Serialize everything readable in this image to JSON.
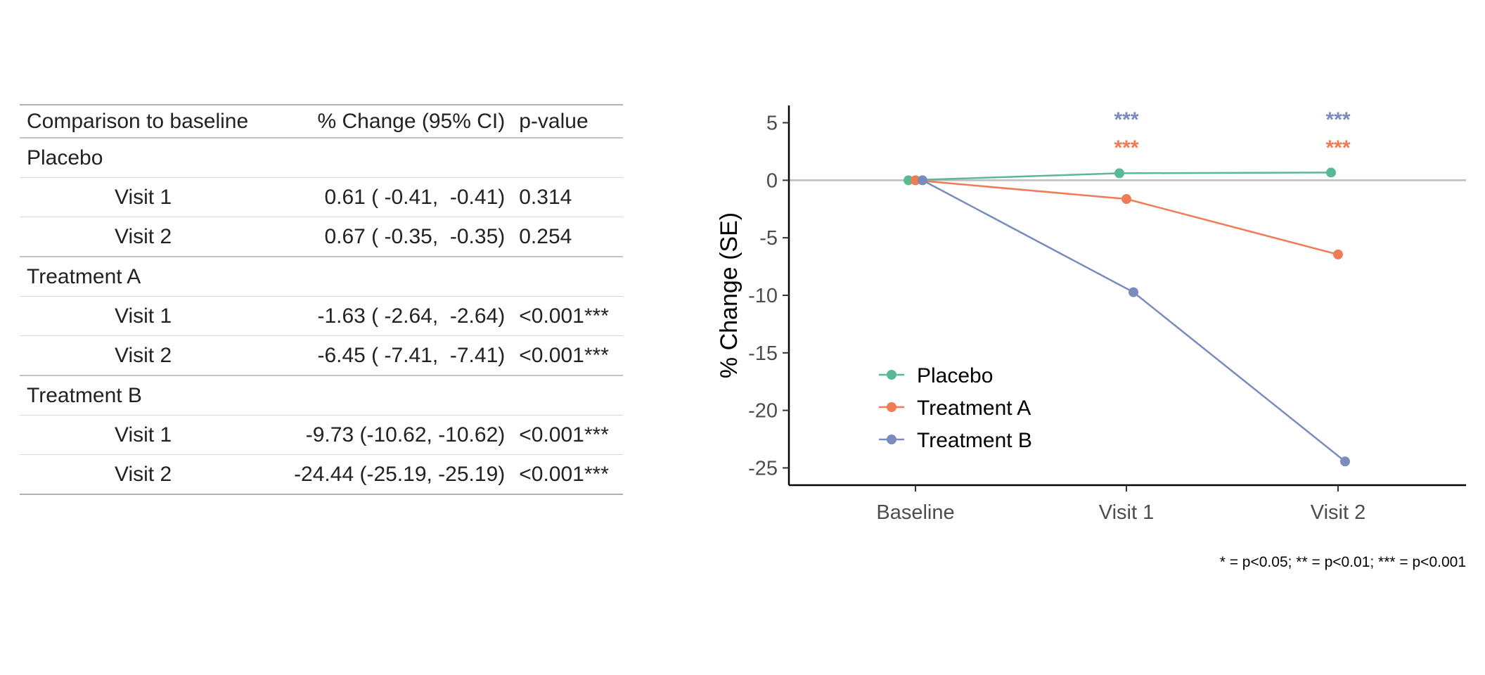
{
  "table": {
    "headers": {
      "label": "Comparison to baseline",
      "change": "% Change (95% CI)",
      "p": "p-value"
    },
    "groups": [
      {
        "name": "Placebo",
        "rows": [
          {
            "visit": "Visit 1",
            "change": "0.61 ( -0.41,  -0.41)",
            "p": "0.314"
          },
          {
            "visit": "Visit 2",
            "change": "0.67 ( -0.35,  -0.35)",
            "p": "0.254"
          }
        ]
      },
      {
        "name": "Treatment A",
        "rows": [
          {
            "visit": "Visit 1",
            "change": "-1.63 ( -2.64,  -2.64)",
            "p": "<0.001***"
          },
          {
            "visit": "Visit 2",
            "change": "-6.45 ( -7.41,  -7.41)",
            "p": "<0.001***"
          }
        ]
      },
      {
        "name": "Treatment B",
        "rows": [
          {
            "visit": "Visit 1",
            "change": "-9.73 (-10.62, -10.62)",
            "p": "<0.001***"
          },
          {
            "visit": "Visit 2",
            "change": "-24.44 (-25.19, -25.19)",
            "p": "<0.001***"
          }
        ]
      }
    ]
  },
  "chart_data": {
    "type": "line",
    "title": "",
    "xlabel": "",
    "ylabel": "% Change (SE)",
    "categories": [
      "Baseline",
      "Visit 1",
      "Visit 2"
    ],
    "ylim": [
      -26.5,
      6.5
    ],
    "yticks": [
      5,
      0,
      -5,
      -10,
      -15,
      -20,
      -25
    ],
    "reference_line": 0,
    "legend_position": "bottom-left",
    "series": [
      {
        "name": "Placebo",
        "color": "#5bb894",
        "values": [
          0,
          0.61,
          0.67
        ],
        "annotations": [
          "",
          "",
          ""
        ]
      },
      {
        "name": "Treatment A",
        "color": "#f07c55",
        "values": [
          0,
          -1.63,
          -6.45
        ],
        "annotations": [
          "",
          "***",
          "***"
        ]
      },
      {
        "name": "Treatment B",
        "color": "#7a8bbd",
        "values": [
          0,
          -9.73,
          -24.44
        ],
        "annotations": [
          "",
          "***",
          "***"
        ]
      }
    ],
    "footnote": "* = p<0.05; ** = p<0.01; *** = p<0.001"
  }
}
